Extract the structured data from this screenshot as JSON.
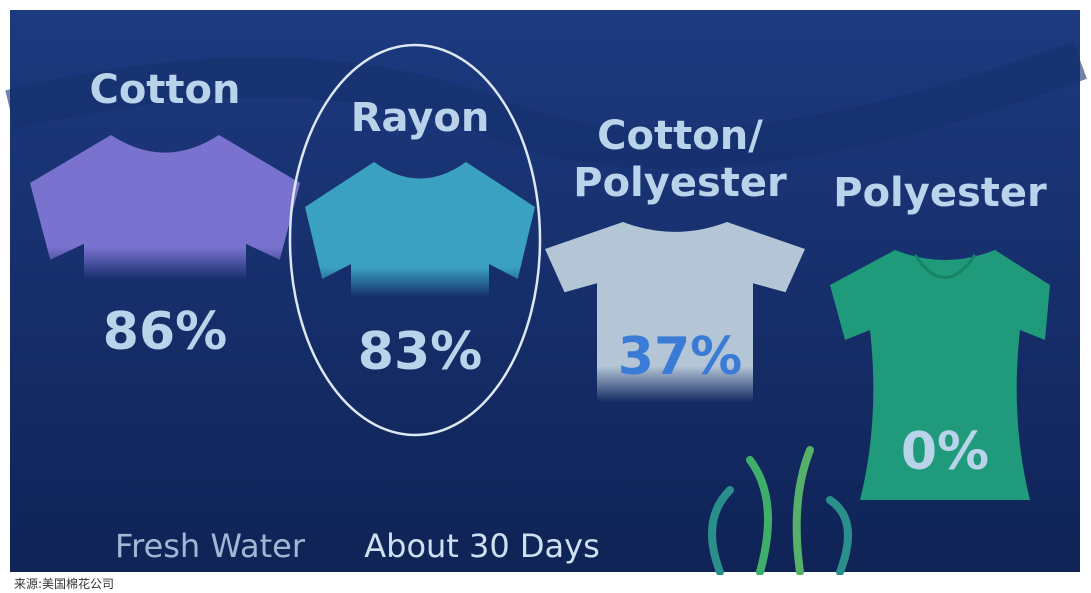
{
  "items": [
    {
      "label": "Cotton",
      "value": "86%"
    },
    {
      "label": "Rayon",
      "value": "83%"
    },
    {
      "label": [
        "Cotton/",
        "Polyester"
      ],
      "value": "37%"
    },
    {
      "label": "Polyester",
      "value": "0%"
    }
  ],
  "condition": "Fresh Water",
  "duration": "About 30 Days",
  "source": "来源:美国棉花公司"
}
